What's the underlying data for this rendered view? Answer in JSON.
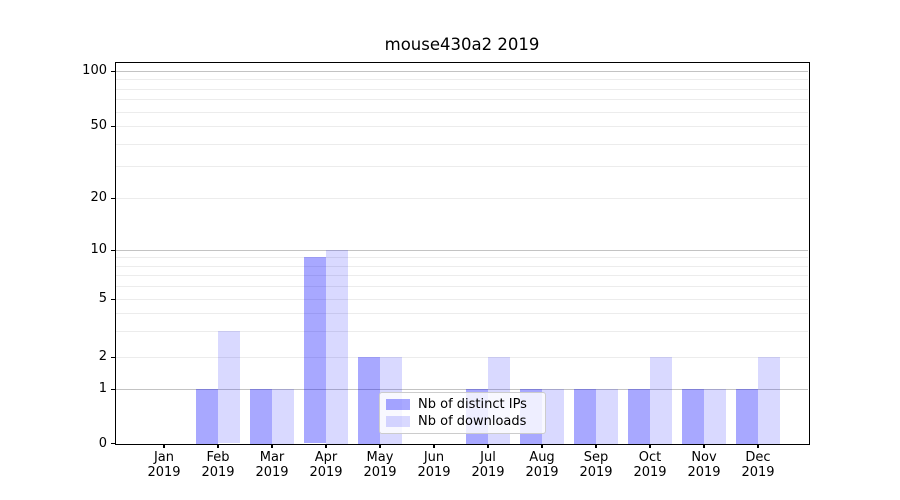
{
  "chart_data": {
    "type": "bar",
    "title": "mouse430a2 2019",
    "categories": [
      "Jan",
      "Feb",
      "Mar",
      "Apr",
      "May",
      "Jun",
      "Jul",
      "Aug",
      "Sep",
      "Oct",
      "Nov",
      "Dec"
    ],
    "year": "2019",
    "series": [
      {
        "name": "Nb of distinct IPs",
        "color": "rgba(0,0,255,0.34)",
        "color_hex": "#a9a9f7",
        "values": [
          0,
          1,
          1,
          9,
          2,
          0,
          1,
          1,
          1,
          1,
          1,
          1
        ]
      },
      {
        "name": "Nb of downloads",
        "color": "rgba(0,0,255,0.15)",
        "color_hex": "#d9d9fb",
        "values": [
          0,
          3,
          1,
          10,
          2,
          0,
          2,
          1,
          1,
          2,
          1,
          2
        ]
      }
    ],
    "ylabel": "",
    "xlabel": "",
    "y_axis": {
      "scale": "log-like (asinh/symlog style with 0 baseline)",
      "major_tick_labels": [
        0,
        1,
        2,
        5,
        10,
        20,
        50,
        100
      ],
      "major_gridline_values": [
        1,
        10,
        100
      ],
      "minor_gridline_values": [
        2,
        3,
        4,
        5,
        6,
        7,
        8,
        9,
        20,
        30,
        40,
        50,
        60,
        70,
        80,
        90
      ],
      "ylim_top_approx": 112
    },
    "grid": "both",
    "legend": {
      "position": "lower center-right, overlapping plot",
      "background": "rgba(255,255,255,0.8)",
      "border_color": "#cccccc"
    },
    "colors": {
      "grid_major": "#c3c3c3",
      "grid_minor": "#ececec",
      "spine": "#000000",
      "text": "#000000",
      "background": "#ffffff"
    }
  }
}
